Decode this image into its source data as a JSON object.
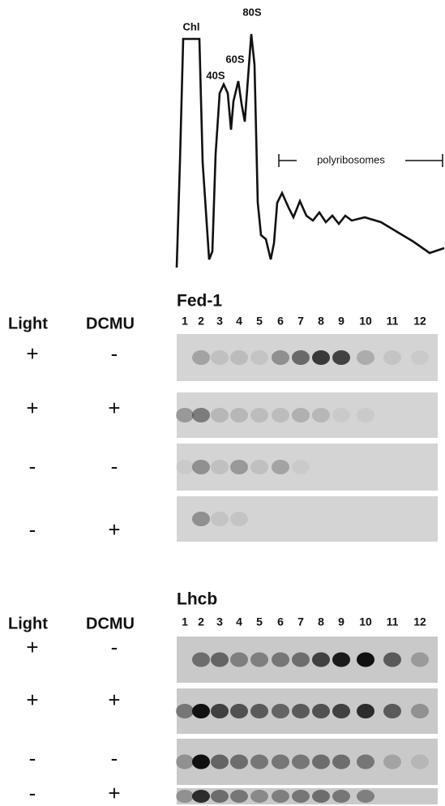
{
  "profile": {
    "peaks": [
      "Chl",
      "40S",
      "60S",
      "80S"
    ],
    "region": "polyribosomes"
  },
  "panels": [
    {
      "title": "Fed-1",
      "headers": [
        "Light",
        "DCMU"
      ],
      "lanes": [
        "1",
        "2",
        "3",
        "4",
        "5",
        "6",
        "7",
        "8",
        "9",
        "10",
        "11",
        "12"
      ],
      "rows": [
        [
          "+",
          "-"
        ],
        [
          "+",
          "+"
        ],
        [
          "-",
          "-"
        ],
        [
          "-",
          "+"
        ]
      ]
    },
    {
      "title": "Lhcb",
      "headers": [
        "Light",
        "DCMU"
      ],
      "lanes": [
        "1",
        "2",
        "3",
        "4",
        "5",
        "6",
        "7",
        "8",
        "9",
        "10",
        "11",
        "12"
      ],
      "rows": [
        [
          "+",
          "-"
        ],
        [
          "+",
          "+"
        ],
        [
          "-",
          "-"
        ],
        [
          "-",
          "+"
        ]
      ]
    }
  ]
}
